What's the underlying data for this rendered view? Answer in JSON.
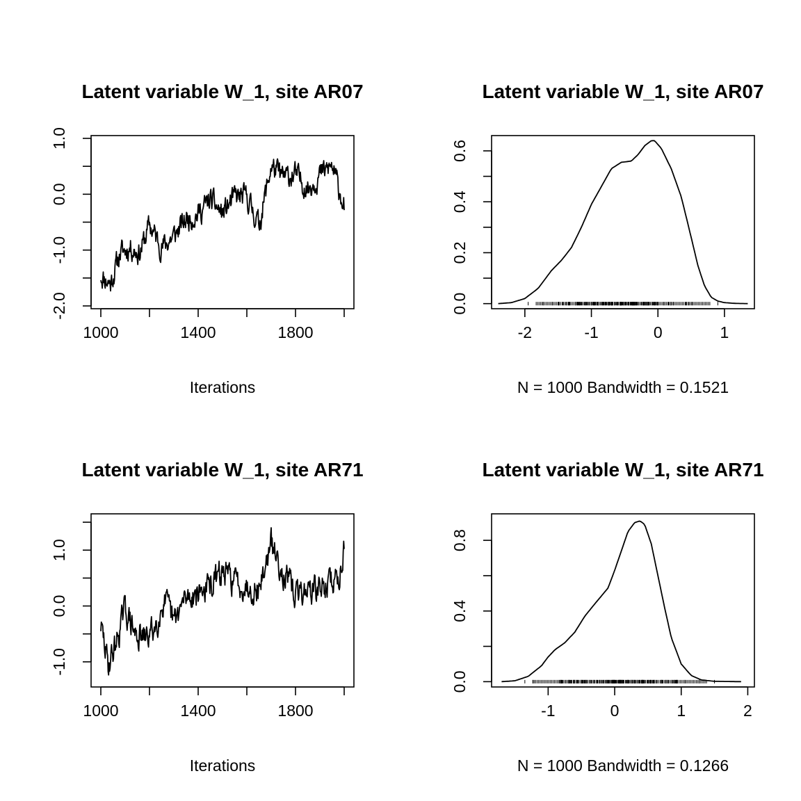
{
  "chart_data": [
    {
      "type": "line",
      "title": "Latent variable W_1, site AR07",
      "xlabel": "Iterations",
      "ylabel": "",
      "xlim": [
        960,
        2040
      ],
      "ylim": [
        -2.05,
        1.05
      ],
      "xticks": [
        1000,
        1200,
        1400,
        1600,
        1800,
        2000
      ],
      "xtick_labels": [
        "1000",
        "",
        "1400",
        "",
        "1800",
        ""
      ],
      "yticks": [
        -2.0,
        -1.5,
        -1.0,
        -0.5,
        0.0,
        0.5,
        1.0
      ],
      "ytick_labels": [
        "-2.0",
        "",
        "-1.0",
        "",
        "0.0",
        "",
        "1.0"
      ],
      "trend": {
        "x": [
          1000,
          1040,
          1080,
          1120,
          1160,
          1200,
          1250,
          1300,
          1350,
          1400,
          1450,
          1500,
          1550,
          1600,
          1650,
          1700,
          1750,
          1800,
          1850,
          1900,
          1950,
          2000
        ],
        "y": [
          -1.45,
          -1.6,
          -1.05,
          -0.95,
          -1.05,
          -0.55,
          -0.95,
          -0.75,
          -0.45,
          -0.35,
          -0.1,
          -0.35,
          -0.05,
          -0.05,
          -0.55,
          0.5,
          0.3,
          0.35,
          0.1,
          0.35,
          0.5,
          -0.2
        ]
      },
      "noise": 0.17,
      "seed": 11
    },
    {
      "type": "line",
      "title": "Latent variable W_1, site AR07",
      "xlabel": "N = 1000   Bandwidth = 0.1521",
      "ylabel": "",
      "xlim": [
        -2.5,
        1.45
      ],
      "ylim": [
        -0.02,
        0.66
      ],
      "xticks": [
        -2,
        -1,
        0,
        1
      ],
      "xtick_labels": [
        "-2",
        "-1",
        "0",
        "1"
      ],
      "yticks": [
        0.0,
        0.1,
        0.2,
        0.3,
        0.4,
        0.5,
        0.6
      ],
      "ytick_labels": [
        "0.0",
        "",
        "0.2",
        "",
        "0.4",
        "",
        "0.6"
      ],
      "density": {
        "x": [
          -2.4,
          -2.2,
          -2.0,
          -1.8,
          -1.6,
          -1.45,
          -1.3,
          -1.15,
          -1.0,
          -0.85,
          -0.7,
          -0.55,
          -0.4,
          -0.3,
          -0.2,
          -0.1,
          -0.05,
          0.05,
          0.2,
          0.35,
          0.5,
          0.6,
          0.7,
          0.8,
          0.9,
          1.0,
          1.15,
          1.35
        ],
        "y": [
          0.0,
          0.004,
          0.02,
          0.06,
          0.13,
          0.17,
          0.22,
          0.3,
          0.39,
          0.46,
          0.53,
          0.555,
          0.56,
          0.585,
          0.62,
          0.64,
          0.64,
          0.61,
          0.53,
          0.42,
          0.26,
          0.15,
          0.07,
          0.025,
          0.01,
          0.004,
          0.001,
          0.0
        ]
      },
      "rug": {
        "min": -1.95,
        "max": 0.9,
        "n": 1000,
        "seed": 5
      }
    },
    {
      "type": "line",
      "title": "Latent variable W_1, site AR71",
      "xlabel": "Iterations",
      "ylabel": "",
      "xlim": [
        960,
        2040
      ],
      "ylim": [
        -1.45,
        1.65
      ],
      "xticks": [
        1000,
        1200,
        1400,
        1600,
        1800,
        2000
      ],
      "xtick_labels": [
        "1000",
        "",
        "1400",
        "",
        "1800",
        ""
      ],
      "yticks": [
        -1.0,
        -0.5,
        0.0,
        0.5,
        1.0,
        1.5
      ],
      "ytick_labels": [
        "-1.0",
        "",
        "0.0",
        "",
        "1.0",
        ""
      ],
      "trend": {
        "x": [
          1000,
          1030,
          1060,
          1100,
          1140,
          1180,
          1220,
          1260,
          1300,
          1350,
          1400,
          1450,
          1500,
          1550,
          1600,
          1650,
          1700,
          1750,
          1800,
          1850,
          1900,
          1950,
          1980,
          2000
        ],
        "y": [
          -0.35,
          -1.05,
          -0.7,
          -0.05,
          -0.5,
          -0.6,
          -0.4,
          0.1,
          -0.3,
          0.15,
          0.25,
          0.35,
          0.6,
          0.45,
          0.35,
          0.3,
          1.1,
          0.6,
          0.2,
          0.3,
          0.3,
          0.45,
          0.5,
          1.15
        ]
      },
      "noise": 0.2,
      "seed": 29
    },
    {
      "type": "line",
      "title": "Latent variable W_1, site AR71",
      "xlabel": "N = 1000   Bandwidth = 0.1266",
      "ylabel": "",
      "xlim": [
        -1.85,
        2.1
      ],
      "ylim": [
        -0.03,
        0.95
      ],
      "xticks": [
        -1,
        0,
        1,
        2
      ],
      "xtick_labels": [
        "-1",
        "0",
        "1",
        "2"
      ],
      "yticks": [
        0.0,
        0.2,
        0.4,
        0.6,
        0.8
      ],
      "ytick_labels": [
        "0.0",
        "",
        "0.4",
        "",
        "0.8"
      ],
      "density": {
        "x": [
          -1.7,
          -1.5,
          -1.3,
          -1.1,
          -1.0,
          -0.9,
          -0.75,
          -0.6,
          -0.45,
          -0.3,
          -0.1,
          0.0,
          0.1,
          0.2,
          0.3,
          0.38,
          0.45,
          0.55,
          0.65,
          0.75,
          0.85,
          1.0,
          1.15,
          1.3,
          1.5,
          1.9
        ],
        "y": [
          0.0,
          0.005,
          0.03,
          0.09,
          0.14,
          0.18,
          0.22,
          0.28,
          0.37,
          0.44,
          0.53,
          0.63,
          0.74,
          0.85,
          0.9,
          0.91,
          0.89,
          0.78,
          0.6,
          0.42,
          0.25,
          0.1,
          0.035,
          0.01,
          0.002,
          0.0
        ]
      },
      "rug": {
        "min": -1.35,
        "max": 1.5,
        "n": 1000,
        "seed": 17
      }
    }
  ]
}
